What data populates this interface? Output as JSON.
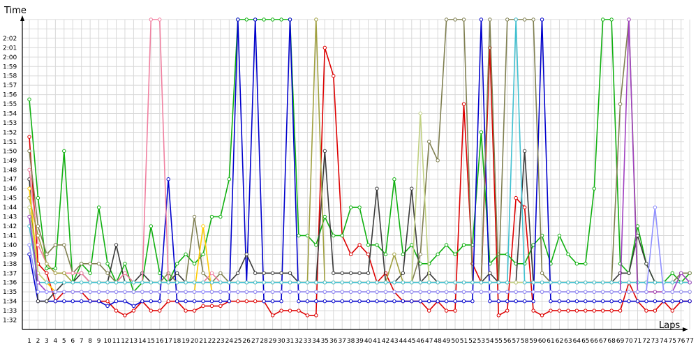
{
  "chart_data": {
    "type": "line",
    "xlabel": "Laps",
    "ylabel": "Time",
    "x": [
      1,
      2,
      3,
      4,
      5,
      6,
      7,
      8,
      9,
      10,
      11,
      12,
      13,
      14,
      15,
      16,
      17,
      18,
      19,
      20,
      21,
      22,
      23,
      24,
      25,
      26,
      27,
      28,
      29,
      30,
      31,
      32,
      33,
      34,
      35,
      36,
      37,
      38,
      39,
      40,
      41,
      42,
      43,
      44,
      45,
      46,
      47,
      48,
      49,
      50,
      51,
      52,
      53,
      54,
      55,
      56,
      57,
      58,
      59,
      60,
      61,
      62,
      63,
      64,
      65,
      66,
      67,
      68,
      69,
      70,
      71,
      72,
      73,
      74,
      75,
      76,
      77
    ],
    "x_tick_labels": [
      "1",
      "2",
      "3",
      "4",
      "5",
      "6",
      "7",
      "8",
      "9",
      "10",
      "11",
      "12",
      "13",
      "14",
      "15",
      "16",
      "17",
      "18",
      "19",
      "20",
      "21",
      "22",
      "23",
      "24",
      "25",
      "26",
      "27",
      "28",
      "29",
      "30",
      "31",
      "32",
      "33",
      "34",
      "35",
      "36",
      "37",
      "38",
      "39",
      "40",
      "41",
      "42",
      "43",
      "44",
      "45",
      "46",
      "47",
      "48",
      "49",
      "50",
      "51",
      "52",
      "53",
      "54",
      "55",
      "56",
      "57",
      "58",
      "59",
      "60",
      "61",
      "62",
      "63",
      "64",
      "65",
      "66",
      "67",
      "68",
      "69",
      "70",
      "71",
      "72",
      "73",
      "74",
      "75",
      "76",
      "77"
    ],
    "y_tick_labels": [
      "1:32",
      "1:33",
      "1:34",
      "1:35",
      "1:36",
      "1:37",
      "1:38",
      "1:39",
      "1:40",
      "1:41",
      "1:42",
      "1:43",
      "1:44",
      "1:45",
      "1:46",
      "1:47",
      "1:48",
      "1:49",
      "1:50",
      "1:51",
      "1:52",
      "1:53",
      "1:54",
      "1:55",
      "1:56",
      "1:57",
      "1:58",
      "1:59",
      "2:00",
      "2:01",
      "2:02"
    ],
    "ylim_seconds": [
      91,
      124
    ],
    "grid": true,
    "series": [
      {
        "color": "#dd0000",
        "values": [
          111.5,
          98,
          97,
          94,
          95,
          95,
          95,
          94,
          94,
          94,
          93,
          92.5,
          93,
          94,
          93,
          93,
          94,
          94,
          93,
          93,
          93.5,
          93.5,
          93.5,
          94,
          94,
          94,
          94,
          94,
          92.5,
          93,
          93,
          93,
          92.5,
          92.5,
          121,
          118,
          101,
          99,
          100,
          99,
          96,
          97,
          95,
          94,
          94,
          94,
          93,
          94,
          93,
          93,
          115,
          98,
          96,
          121,
          92.5,
          93,
          105,
          104,
          93,
          92.5,
          93,
          93,
          93,
          93,
          93,
          93,
          93,
          93,
          93,
          96,
          94,
          93,
          93,
          94,
          93,
          94,
          94
        ]
      },
      {
        "color": "#10b010",
        "values": [
          115.5,
          105,
          97.5,
          97.5,
          110,
          96,
          98,
          97,
          104,
          98,
          96,
          98,
          95,
          96,
          102,
          97,
          96,
          98,
          99,
          98,
          99,
          103,
          103,
          107,
          124,
          124,
          124,
          124,
          124,
          124,
          124,
          101,
          101,
          100,
          103,
          101,
          101,
          104,
          104,
          100,
          100,
          99,
          107,
          99,
          100,
          98,
          98,
          99,
          100,
          99,
          100,
          100,
          112,
          98,
          99,
          99,
          98,
          98,
          100,
          101,
          98,
          101,
          99,
          98,
          98,
          106,
          124,
          124,
          98,
          97,
          102,
          98,
          96,
          96,
          97,
          96,
          97
        ]
      },
      {
        "color": "#0000cc",
        "values": [
          99,
          94,
          94,
          94,
          94,
          94,
          94,
          94,
          94,
          93.5,
          94,
          94,
          93.5,
          94,
          94,
          94,
          107,
          94,
          94,
          94,
          94,
          94,
          94,
          94,
          124,
          96,
          124,
          94,
          94,
          94,
          124,
          94,
          94,
          94,
          94,
          94,
          94,
          94,
          94,
          94,
          94,
          94,
          94,
          94,
          94,
          94,
          94,
          94,
          94,
          94,
          94,
          94,
          124,
          94,
          94,
          94,
          94,
          94,
          94,
          124,
          94,
          94,
          94,
          94,
          94,
          94,
          94,
          94,
          94,
          94,
          94,
          94,
          94,
          94,
          94,
          94,
          94
        ]
      },
      {
        "color": "#3a3a3a",
        "values": [
          107,
          94,
          94,
          95,
          96,
          96,
          97,
          96,
          96,
          96,
          100,
          96,
          96,
          97,
          96,
          96,
          96,
          97,
          96,
          96,
          96,
          96,
          96,
          96,
          97,
          99,
          97,
          97,
          97,
          97,
          97,
          96,
          96,
          96,
          110,
          97,
          97,
          97,
          97,
          97,
          106,
          96,
          96,
          97,
          106,
          96,
          97,
          96,
          96,
          96,
          96,
          96,
          96,
          97,
          96,
          96,
          96,
          110,
          96,
          96,
          96,
          96,
          96,
          96,
          96,
          96,
          96,
          96,
          97,
          97,
          101,
          98,
          96,
          96,
          96,
          96,
          96
        ]
      },
      {
        "color": "#7f7f50",
        "values": [
          110,
          102,
          99,
          100,
          100,
          97,
          98,
          98,
          98,
          97,
          96,
          97,
          96,
          96,
          96,
          96,
          97,
          96,
          96,
          103,
          97,
          96,
          97,
          96,
          96,
          96,
          96,
          96,
          96,
          96,
          96,
          96,
          96,
          96,
          96,
          96,
          96,
          96,
          96,
          96,
          96,
          96,
          96,
          96,
          96,
          99,
          111,
          109,
          124,
          124,
          124,
          96,
          96,
          124,
          96,
          124,
          124,
          124,
          124,
          97,
          96,
          96,
          96,
          96,
          96,
          96,
          96,
          96,
          115,
          124,
          96,
          96,
          96,
          96,
          96,
          97,
          97
        ]
      },
      {
        "color": "#f080a0",
        "values": [
          108,
          100,
          98,
          97,
          97,
          97,
          97,
          96,
          96,
          96,
          96,
          97,
          96,
          96,
          124,
          124,
          96,
          96,
          96,
          96,
          96,
          97,
          96,
          96,
          96,
          96,
          96,
          96,
          96,
          96,
          96,
          96,
          96,
          96,
          96,
          96,
          96,
          96,
          96,
          96,
          96,
          96,
          96,
          96,
          96,
          96,
          96,
          96,
          96,
          96,
          96,
          96,
          96,
          96,
          96,
          96,
          96,
          96,
          96,
          96,
          96,
          96,
          96,
          96,
          96,
          96,
          96,
          96,
          96,
          96,
          96,
          96,
          96,
          96,
          96,
          96,
          96
        ]
      },
      {
        "color": "#a0a040",
        "values": [
          105,
          101,
          98,
          97,
          97,
          96,
          96,
          96,
          96,
          96,
          96,
          96,
          96,
          96,
          96,
          96,
          96,
          96,
          96,
          96,
          96,
          96,
          96,
          96,
          96,
          96,
          96,
          96,
          96,
          96,
          96,
          96,
          96,
          124,
          96,
          96,
          96,
          96,
          96,
          96,
          96,
          96,
          99,
          96,
          96,
          96,
          96,
          96,
          96,
          96,
          96,
          96,
          96,
          96,
          96,
          96,
          96,
          96,
          96,
          96,
          96,
          96,
          96,
          96,
          96,
          96,
          96,
          96,
          96,
          96,
          96,
          96,
          96,
          96,
          96,
          96,
          96
        ]
      },
      {
        "color": "#ffcc00",
        "values": [
          106,
          97,
          96,
          95,
          95,
          95,
          95,
          95,
          95,
          95,
          95,
          95,
          95,
          95,
          95,
          95,
          95,
          95,
          95,
          95,
          102,
          95,
          95,
          95,
          95,
          95,
          95,
          95,
          95,
          95,
          95,
          95,
          95,
          95,
          95,
          95,
          95,
          95,
          95,
          95,
          95,
          95,
          95,
          95,
          95,
          95,
          95,
          95,
          95,
          95,
          95,
          95,
          95,
          95,
          95,
          95,
          95,
          95,
          95,
          95,
          95,
          95,
          95,
          95,
          95,
          95,
          95,
          95,
          95,
          95,
          95,
          95,
          95,
          95,
          95,
          95,
          95
        ]
      },
      {
        "color": "#c0d080",
        "values": [
          104,
          97,
          96,
          96,
          96,
          96,
          96,
          96,
          96,
          96,
          96,
          96,
          96,
          96,
          96,
          96,
          96,
          96,
          96,
          96,
          96,
          96,
          96,
          96,
          96,
          96,
          96,
          96,
          96,
          96,
          96,
          96,
          96,
          96,
          96,
          96,
          96,
          96,
          96,
          96,
          96,
          96,
          96,
          96,
          96,
          114,
          96,
          96,
          96,
          96,
          96,
          96,
          96,
          96,
          96,
          96,
          96,
          96,
          96,
          96,
          96,
          96,
          96,
          96,
          96,
          96,
          96,
          96,
          96,
          96,
          96,
          96,
          96,
          96,
          96,
          96,
          96
        ]
      },
      {
        "color": "#40c0d0",
        "values": [
          102,
          96,
          96,
          96,
          96,
          96,
          96,
          96,
          96,
          96,
          96,
          96,
          96,
          96,
          96,
          96,
          96,
          96,
          96,
          96,
          96,
          96,
          96,
          96,
          96,
          96,
          96,
          96,
          96,
          96,
          96,
          96,
          96,
          96,
          96,
          96,
          96,
          96,
          96,
          96,
          96,
          96,
          96,
          96,
          96,
          96,
          96,
          96,
          96,
          96,
          96,
          96,
          96,
          96,
          96,
          96,
          124,
          96,
          96,
          96,
          96,
          96,
          96,
          96,
          96,
          96,
          96,
          96,
          96,
          96,
          96,
          96,
          96,
          96,
          96,
          96,
          96
        ]
      },
      {
        "color": "#a040c0",
        "values": [
          103,
          96,
          95,
          95,
          95,
          95,
          95,
          95,
          95,
          95,
          95,
          95,
          95,
          95,
          95,
          95,
          95,
          95,
          95,
          95,
          95,
          95,
          95,
          95,
          95,
          95,
          95,
          95,
          95,
          95,
          95,
          95,
          95,
          95,
          95,
          95,
          95,
          95,
          95,
          95,
          95,
          95,
          95,
          95,
          95,
          95,
          95,
          95,
          95,
          95,
          95,
          95,
          95,
          95,
          95,
          95,
          95,
          95,
          95,
          95,
          95,
          95,
          95,
          95,
          95,
          95,
          95,
          95,
          95,
          124,
          95,
          95,
          95,
          95,
          95,
          97,
          96
        ]
      },
      {
        "color": "#9090ff",
        "values": [
          100,
          95,
          95,
          95,
          95,
          95,
          95,
          95,
          95,
          95,
          95,
          95,
          95,
          95,
          95,
          95,
          95,
          95,
          95,
          95,
          95,
          95,
          95,
          95,
          95,
          95,
          95,
          95,
          95,
          95,
          95,
          95,
          95,
          95,
          95,
          95,
          95,
          95,
          95,
          95,
          95,
          95,
          95,
          95,
          95,
          95,
          95,
          95,
          95,
          95,
          95,
          95,
          95,
          95,
          95,
          95,
          95,
          95,
          95,
          95,
          95,
          95,
          95,
          95,
          95,
          95,
          95,
          95,
          95,
          95,
          95,
          95,
          104,
          95,
          95,
          95,
          95
        ]
      }
    ]
  }
}
